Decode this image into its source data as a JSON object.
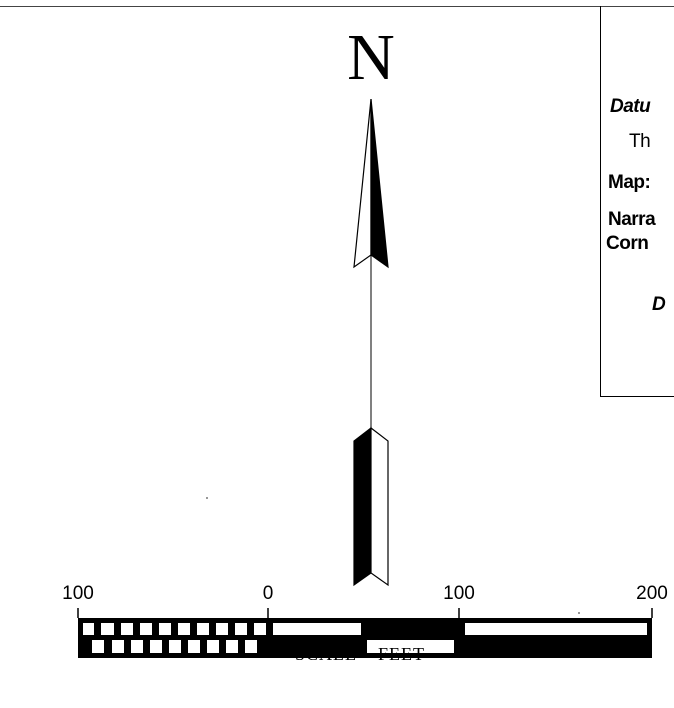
{
  "north_label": "N",
  "info_box": {
    "lines": [
      "Datu",
      "Th",
      "Map:",
      "Narra",
      "Corn",
      "D"
    ]
  },
  "scale": {
    "ticks": [
      "100",
      "0",
      "100",
      "200"
    ],
    "title": "SCALE  –  FEET"
  }
}
